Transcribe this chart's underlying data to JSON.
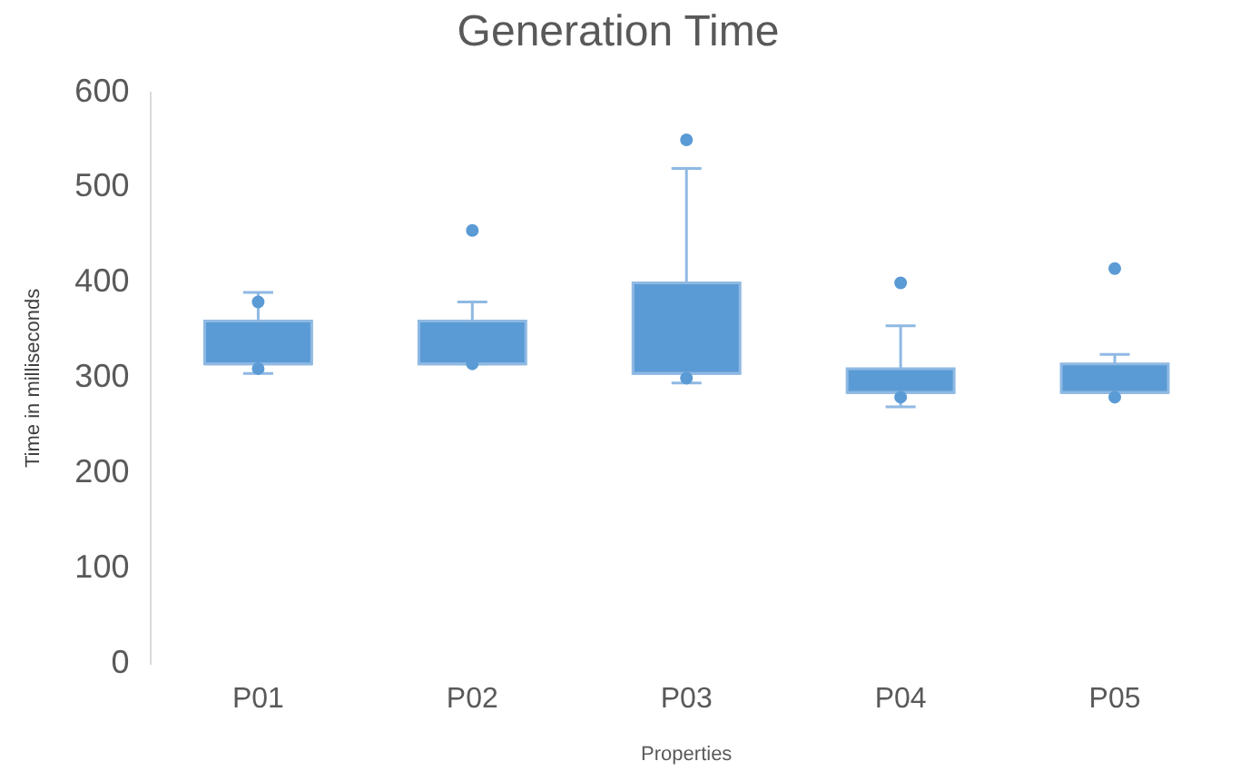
{
  "chart_data": {
    "type": "box",
    "title": "Generation Time",
    "xlabel": "Properties",
    "ylabel": "Time in milliseconds",
    "categories": [
      "P01",
      "P02",
      "P03",
      "P04",
      "P05"
    ],
    "color": "#5b9bd5",
    "boxes": [
      {
        "low": 305,
        "q1": 315,
        "median": 315,
        "q3": 360,
        "high": 390,
        "outliers": [
          380,
          310
        ]
      },
      {
        "low": 315,
        "q1": 315,
        "median": 315,
        "q3": 360,
        "high": 380,
        "outliers": [
          455,
          315
        ]
      },
      {
        "low": 295,
        "q1": 305,
        "median": 305,
        "q3": 400,
        "high": 520,
        "outliers": [
          550,
          300
        ]
      },
      {
        "low": 270,
        "q1": 285,
        "median": 285,
        "q3": 310,
        "high": 355,
        "outliers": [
          400,
          280
        ]
      },
      {
        "low": 285,
        "q1": 285,
        "median": 285,
        "q3": 315,
        "high": 325,
        "outliers": [
          415,
          280
        ]
      }
    ],
    "ylim": [
      0,
      600
    ],
    "yticks": [
      0,
      100,
      200,
      300,
      400,
      500,
      600
    ],
    "grid": false,
    "legend": false,
    "marker": "circle"
  }
}
